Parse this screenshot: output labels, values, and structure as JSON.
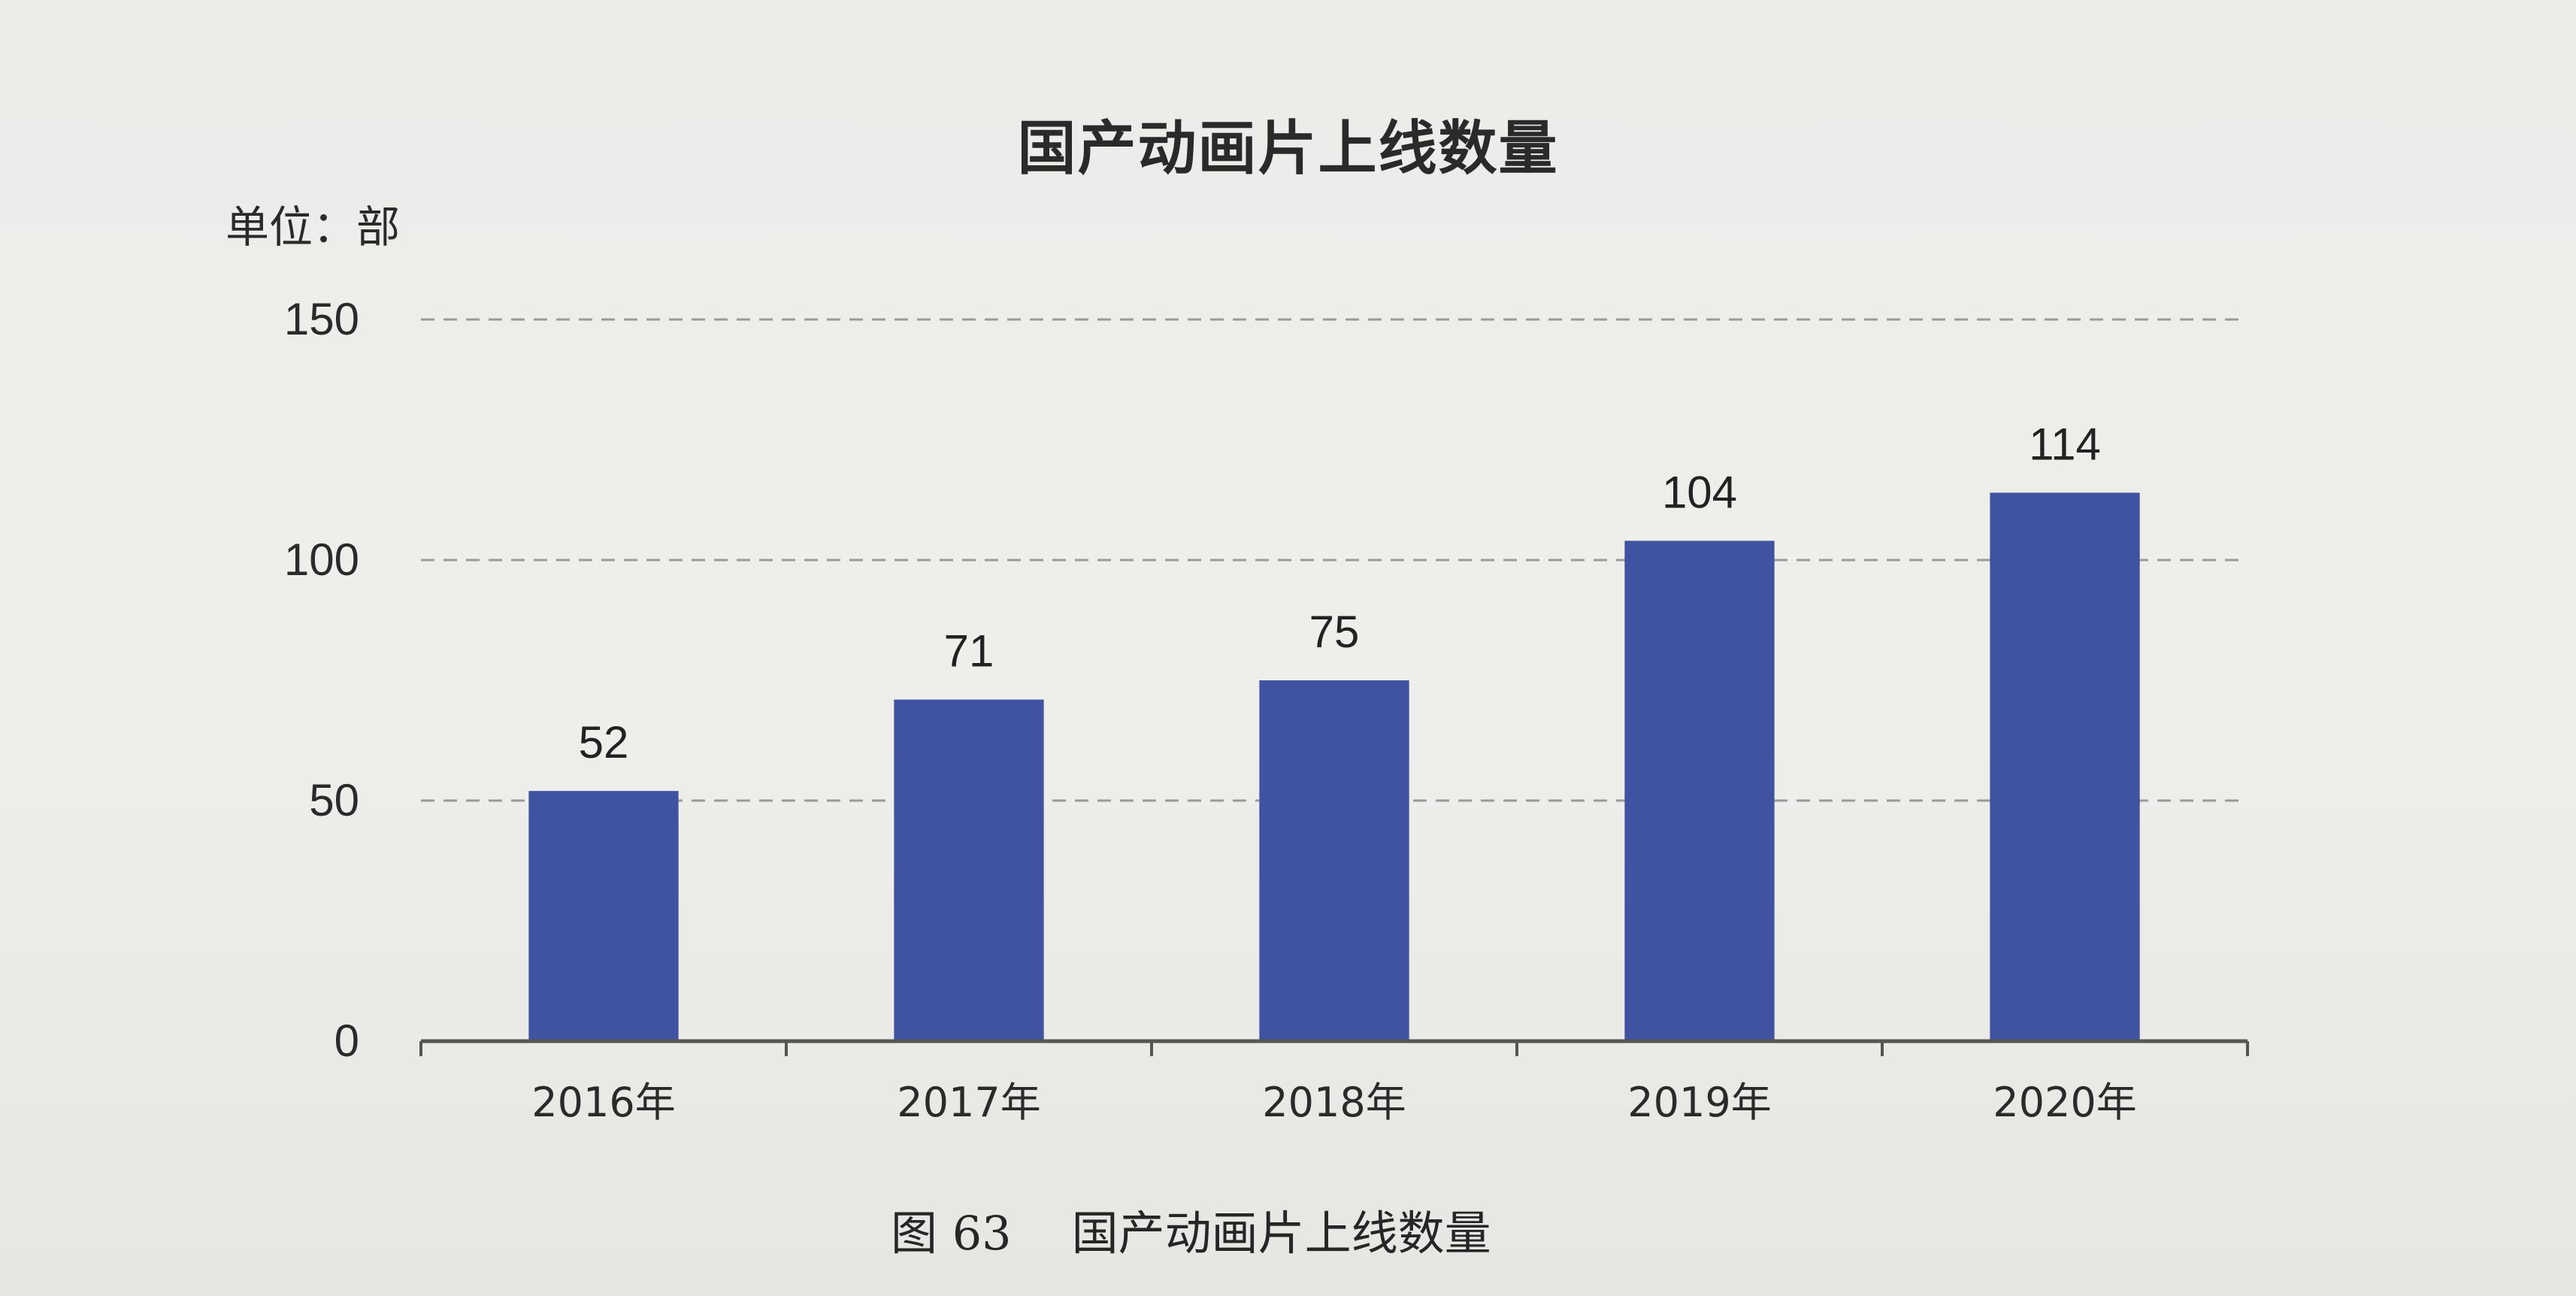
{
  "page": {
    "unit_label": "单位：部",
    "caption_prefix": "图 63",
    "caption_title": "国产动画片上线数量"
  },
  "chart_data": {
    "type": "bar",
    "title": "国产动画片上线数量",
    "categories": [
      "2016年",
      "2017年",
      "2018年",
      "2019年",
      "2020年"
    ],
    "values": [
      52,
      71,
      75,
      104,
      114
    ],
    "ylim": [
      0,
      150
    ],
    "yticks": [
      0,
      50,
      100,
      150
    ],
    "grid": true,
    "bar_color": "#3f53a0",
    "axis_color": "#555555",
    "grid_color": "#9a9a9a"
  }
}
